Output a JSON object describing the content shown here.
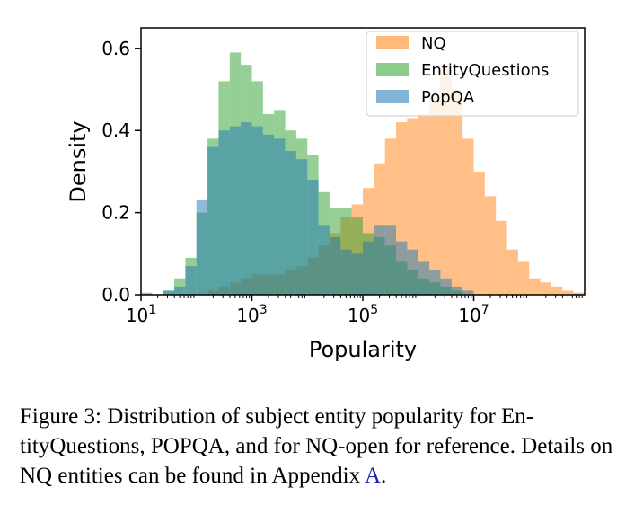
{
  "chart_data": {
    "type": "histogram",
    "xlabel": "Popularity",
    "ylabel": "Density",
    "xscale": "log",
    "xlim_log10": [
      1,
      9
    ],
    "ylim": [
      0,
      0.65
    ],
    "x_ticks": [
      {
        "base": "10",
        "exp": "1",
        "log10": 1
      },
      {
        "base": "10",
        "exp": "3",
        "log10": 3
      },
      {
        "base": "10",
        "exp": "5",
        "log10": 5
      },
      {
        "base": "10",
        "exp": "7",
        "log10": 7
      }
    ],
    "y_ticks": [
      "0.0",
      "0.2",
      "0.4",
      "0.6"
    ],
    "y_tick_values": [
      0,
      0.2,
      0.4,
      0.6
    ],
    "bin_start_log10": 1.0,
    "bin_width_log10": 0.2,
    "legend_position": "top-right",
    "series": [
      {
        "name": "NQ",
        "color": "#ff7f0e",
        "values": [
          0,
          0,
          0,
          0,
          0,
          0,
          0.01,
          0.02,
          0.03,
          0.04,
          0.05,
          0.05,
          0.05,
          0.06,
          0.07,
          0.09,
          0.12,
          0.15,
          0.19,
          0.22,
          0.26,
          0.32,
          0.38,
          0.42,
          0.43,
          0.44,
          0.48,
          0.55,
          0.5,
          0.38,
          0.3,
          0.24,
          0.18,
          0.11,
          0.08,
          0.04,
          0.03,
          0.02,
          0.01,
          0.005,
          0,
          0,
          0,
          0,
          0,
          0,
          0,
          0,
          0,
          0
        ]
      },
      {
        "name": "EntityQuestions",
        "color": "#2ca02c",
        "values": [
          0.005,
          0,
          0.01,
          0.04,
          0.09,
          0.2,
          0.38,
          0.52,
          0.59,
          0.56,
          0.52,
          0.44,
          0.45,
          0.4,
          0.38,
          0.34,
          0.25,
          0.21,
          0.21,
          0.19,
          0.15,
          0.14,
          0.12,
          0.08,
          0.06,
          0.04,
          0.03,
          0.02,
          0.01,
          0,
          0,
          0,
          0,
          0,
          0,
          0,
          0,
          0,
          0,
          0
        ]
      },
      {
        "name": "PopQA",
        "color": "#1f77b4",
        "values": [
          0,
          0,
          0.01,
          0.02,
          0.07,
          0.23,
          0.36,
          0.4,
          0.41,
          0.42,
          0.41,
          0.39,
          0.38,
          0.35,
          0.33,
          0.28,
          0.17,
          0.14,
          0.11,
          0.1,
          0.13,
          0.17,
          0.17,
          0.13,
          0.11,
          0.08,
          0.06,
          0.04,
          0.02,
          0.01,
          0,
          0,
          0,
          0,
          0,
          0,
          0,
          0,
          0,
          0
        ]
      }
    ]
  },
  "caption": {
    "part1": "Figure 3: Distribution of subject entity popularity for En-tityQuestions, ",
    "popqa_P": "P",
    "popqa_rest": "OP",
    "popqa_QA": "QA",
    "part2": ", and for NQ-open for reference. Details on NQ entities can be found in Appendix ",
    "appendix_link": "A",
    "part3": "."
  }
}
